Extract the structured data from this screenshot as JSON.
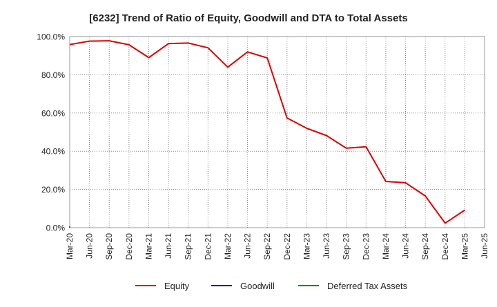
{
  "chart_data": {
    "type": "line",
    "title": "[6232]  Trend of Ratio of Equity, Goodwill and DTA to Total Assets",
    "xlabel": "",
    "ylabel": "",
    "ylim": [
      0,
      100
    ],
    "y_ticks": [
      "0.0%",
      "20.0%",
      "40.0%",
      "60.0%",
      "80.0%",
      "100.0%"
    ],
    "y_tick_values": [
      0,
      20,
      40,
      60,
      80,
      100
    ],
    "x_ticks": [
      "Mar-20",
      "Jun-20",
      "Sep-20",
      "Dec-20",
      "Mar-21",
      "Jun-21",
      "Sep-21",
      "Dec-21",
      "Mar-22",
      "Jun-22",
      "Sep-22",
      "Dec-22",
      "Mar-23",
      "Jun-23",
      "Sep-23",
      "Dec-23",
      "Mar-24",
      "Jun-24",
      "Sep-24",
      "Dec-24",
      "Mar-25",
      "Jun-25"
    ],
    "grid": true,
    "legend_position": "bottom",
    "series": [
      {
        "name": "Equity",
        "color": "#dd0000",
        "x": [
          "Mar-20",
          "Jun-20",
          "Sep-20",
          "Dec-20",
          "Mar-21",
          "Jun-21",
          "Sep-21",
          "Dec-21",
          "Mar-22",
          "Jun-22",
          "Sep-22",
          "Dec-22",
          "Mar-23",
          "Jun-23",
          "Sep-23",
          "Dec-23",
          "Mar-24",
          "Jun-24",
          "Sep-24",
          "Dec-24",
          "Mar-25"
        ],
        "values": [
          95.8,
          97.6,
          97.8,
          95.7,
          89.0,
          96.3,
          96.6,
          94.1,
          84.0,
          92.0,
          88.8,
          57.4,
          52.0,
          48.2,
          41.6,
          42.3,
          24.2,
          23.5,
          16.6,
          2.4,
          9.2
        ]
      },
      {
        "name": "Goodwill",
        "color": "#0000cc",
        "x": [
          "Mar-20"
        ],
        "values": [
          0
        ]
      },
      {
        "name": "Deferred Tax Assets",
        "color": "#008800",
        "x": [
          "Mar-20"
        ],
        "values": [
          0
        ]
      }
    ]
  }
}
